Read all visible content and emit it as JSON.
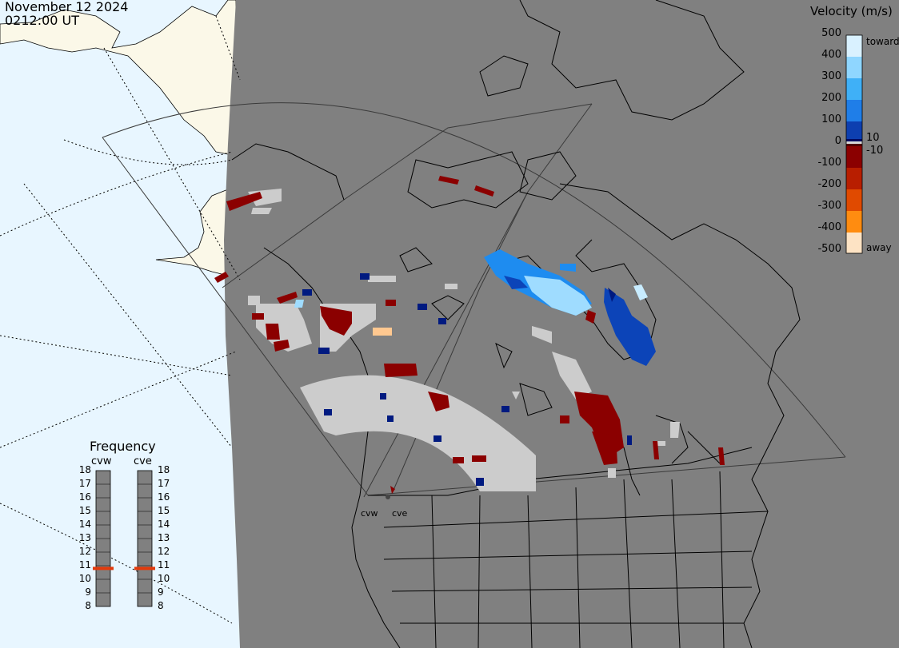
{
  "header": {
    "date": "November 12 2024",
    "time": "0212:00 UT"
  },
  "legend": {
    "title": "Velocity (m/s)",
    "ticks": [
      "500",
      "400",
      "300",
      "200",
      "100",
      "10",
      "0",
      "-10",
      "-100",
      "-200",
      "-300",
      "-400",
      "-500"
    ],
    "toward_label": "toward",
    "away_label": "away",
    "colors": [
      "#ffffff",
      "#c8ecff",
      "#8fd6ff",
      "#3fb0f7",
      "#1f7ee8",
      "#0d4dc2",
      "#00208c",
      "#6b0000",
      "#8b0000",
      "#b81e00",
      "#e04a00",
      "#ff8c10",
      "#ffb870",
      "#fde3c4"
    ],
    "zero_band_color": "#d8d8d8"
  },
  "frequency": {
    "title": "Frequency",
    "radars": [
      {
        "code": "cvw",
        "value": 10.8
      },
      {
        "code": "cve",
        "value": 10.8
      }
    ],
    "scale": [
      "18",
      "17",
      "16",
      "15",
      "14",
      "13",
      "12",
      "11",
      "10",
      "9",
      "8"
    ],
    "marker_color": "#e23a0c"
  },
  "map": {
    "land_color": "#808080",
    "ocean_color": "#e8f6ff",
    "sunlit_land_color": "#fbf8e8",
    "scatter_colors": {
      "ground": "#cccccc",
      "toward_light": "#9fdcff",
      "toward_mid": "#1e8cf0",
      "toward_dark": "#0c44b8",
      "toward_deep": "#001a80",
      "away_dark": "#8b0000",
      "away_light": "#ffc890"
    },
    "radar_labels": [
      "cvw",
      "cve"
    ]
  }
}
